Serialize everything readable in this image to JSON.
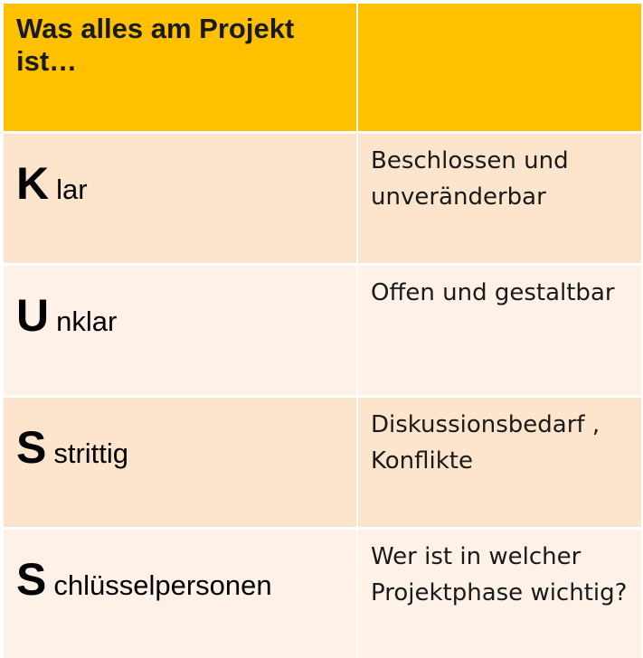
{
  "header": {
    "title": "Was alles am Projekt ist…",
    "right": ""
  },
  "rows": [
    {
      "letter": "K",
      "rest": "lar",
      "description": "Beschlossen und unveränderbar"
    },
    {
      "letter": "U",
      "rest": "nklar",
      "description": "Offen und gestaltbar"
    },
    {
      "letter": "S",
      "rest": "strittig",
      "description": "Diskussionsbedarf , Konflikte"
    },
    {
      "letter": "S",
      "rest": "chlüsselpersonen",
      "description": "Wer ist in welcher Projektphase wichtig?"
    }
  ],
  "colors": {
    "header": "#ffc000",
    "row_dark": "#fce4cd",
    "row_light": "#fef2e8"
  }
}
